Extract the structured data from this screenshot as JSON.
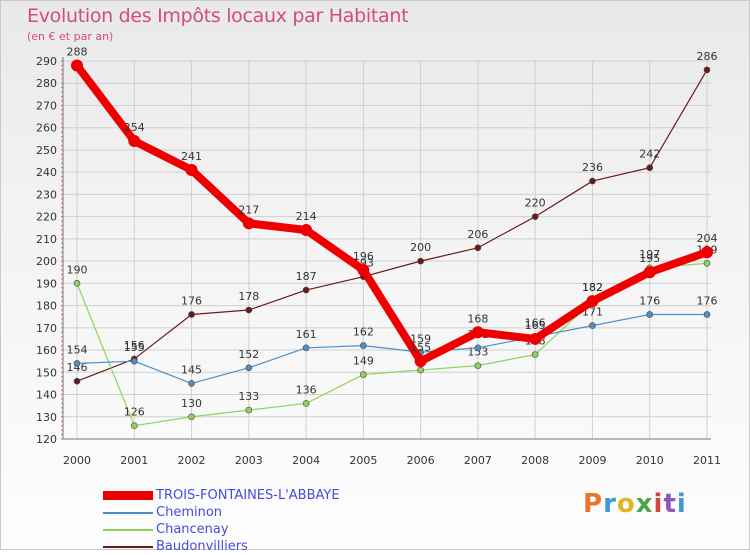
{
  "header": {
    "title": "Evolution des Impôts locaux par Habitant",
    "subtitle": "(en € et par an)"
  },
  "logo": {
    "text": "Proxiti",
    "colors": [
      "#e8752a",
      "#3a9bd5",
      "#e2b528",
      "#4aa84a",
      "#d8433f",
      "#8e56b8",
      "#3a9bd5"
    ]
  },
  "colors": {
    "title": "#d64c76",
    "axis_label": "#333333",
    "grid": "#d0d0d0"
  },
  "chart_data": {
    "type": "line",
    "x": [
      "2000",
      "2001",
      "2002",
      "2003",
      "2004",
      "2005",
      "2006",
      "2007",
      "2008",
      "2009",
      "2010",
      "2011"
    ],
    "ylim": [
      120,
      290
    ],
    "yticks": [
      120,
      130,
      140,
      150,
      160,
      170,
      180,
      190,
      200,
      210,
      220,
      230,
      240,
      250,
      260,
      270,
      280,
      290
    ],
    "grid": true,
    "legend_position": "bottom-left",
    "series": [
      {
        "name": "Baudonvilliers",
        "color": "#6b1a1a",
        "values": [
          146,
          156,
          176,
          178,
          187,
          193,
          200,
          206,
          220,
          236,
          242,
          286
        ],
        "labels": [
          "146",
          "156",
          "176",
          "178",
          "187",
          "193",
          "200",
          "206",
          "220",
          "236",
          "242",
          "286"
        ]
      },
      {
        "name": "Chancenay",
        "color": "#8ed45a",
        "values": [
          190,
          126,
          130,
          133,
          136,
          149,
          151,
          153,
          158,
          182,
          197,
          199
        ],
        "labels": [
          "190",
          "126",
          "130",
          "133",
          "136",
          "149",
          "",
          "153",
          "158",
          "182",
          "197",
          "199"
        ]
      },
      {
        "name": "Cheminon",
        "color": "#4f8fc8",
        "values": [
          154,
          155,
          145,
          152,
          161,
          162,
          159,
          161,
          166,
          171,
          176,
          176
        ],
        "labels": [
          "154",
          "155",
          "145",
          "152",
          "161",
          "162",
          "159",
          "161",
          "166",
          "171",
          "176",
          "176"
        ]
      },
      {
        "name": "TROIS-FONTAINES-L'ABBAYE",
        "color": "#ee0000",
        "values": [
          288,
          254,
          241,
          217,
          214,
          196,
          155,
          168,
          165,
          182,
          195,
          204
        ],
        "labels": [
          "288",
          "254",
          "241",
          "217",
          "214",
          "196",
          "155",
          "168",
          "165",
          "182",
          "195",
          "204"
        ]
      }
    ],
    "legend_order": [
      "TROIS-FONTAINES-L'ABBAYE",
      "Cheminon",
      "Chancenay",
      "Baudonvilliers"
    ]
  }
}
